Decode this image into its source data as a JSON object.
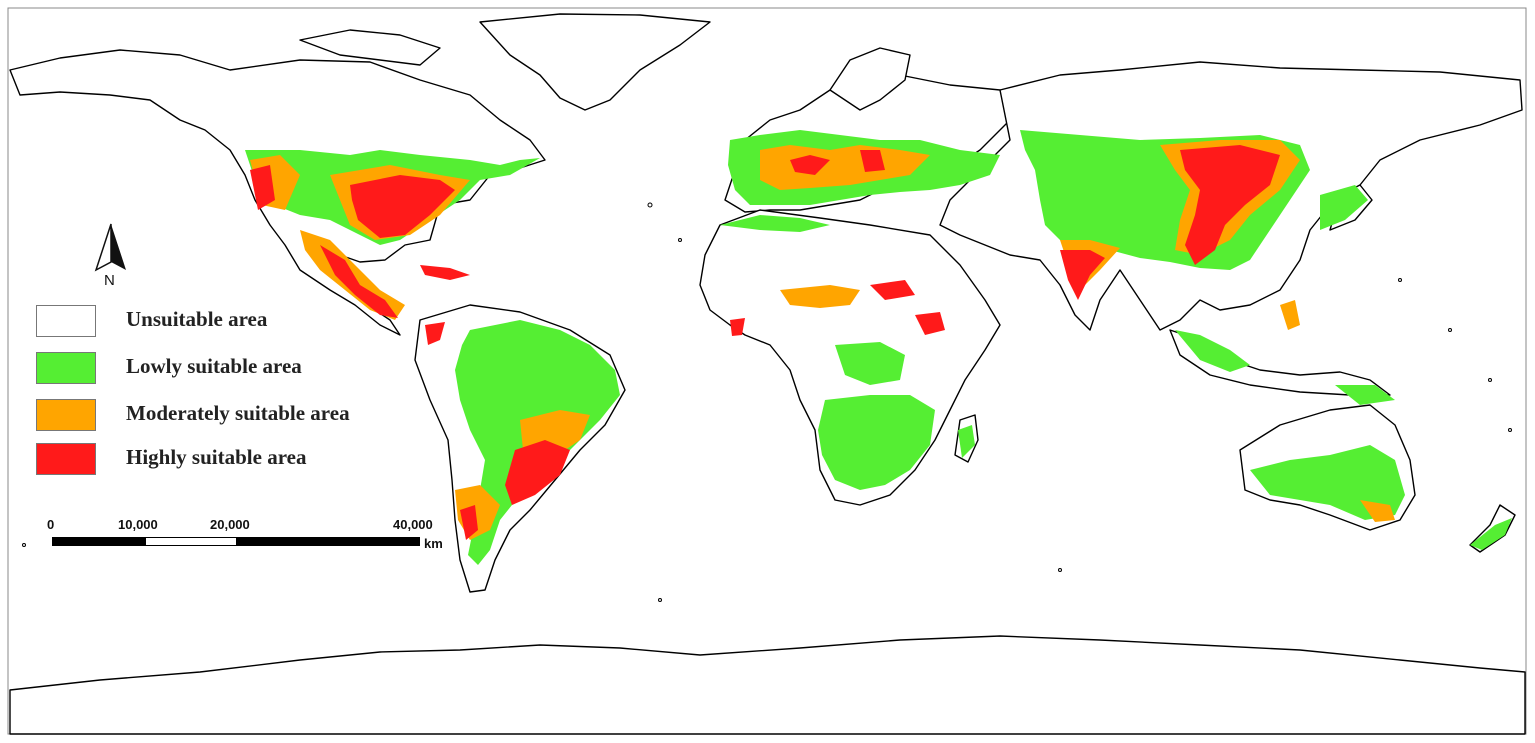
{
  "legend": {
    "items": [
      {
        "label": "Unsuitable area",
        "color": "#ffffff"
      },
      {
        "label": "Lowly suitable area",
        "color": "#55ee33"
      },
      {
        "label": "Moderately suitable area",
        "color": "#ffa500"
      },
      {
        "label": "Highly suitable area",
        "color": "#ff1a1a"
      }
    ]
  },
  "north_arrow": {
    "label": "N"
  },
  "scale_bar": {
    "ticks": [
      "0",
      "10,000",
      "20,000",
      "40,000"
    ],
    "unit": "km"
  }
}
